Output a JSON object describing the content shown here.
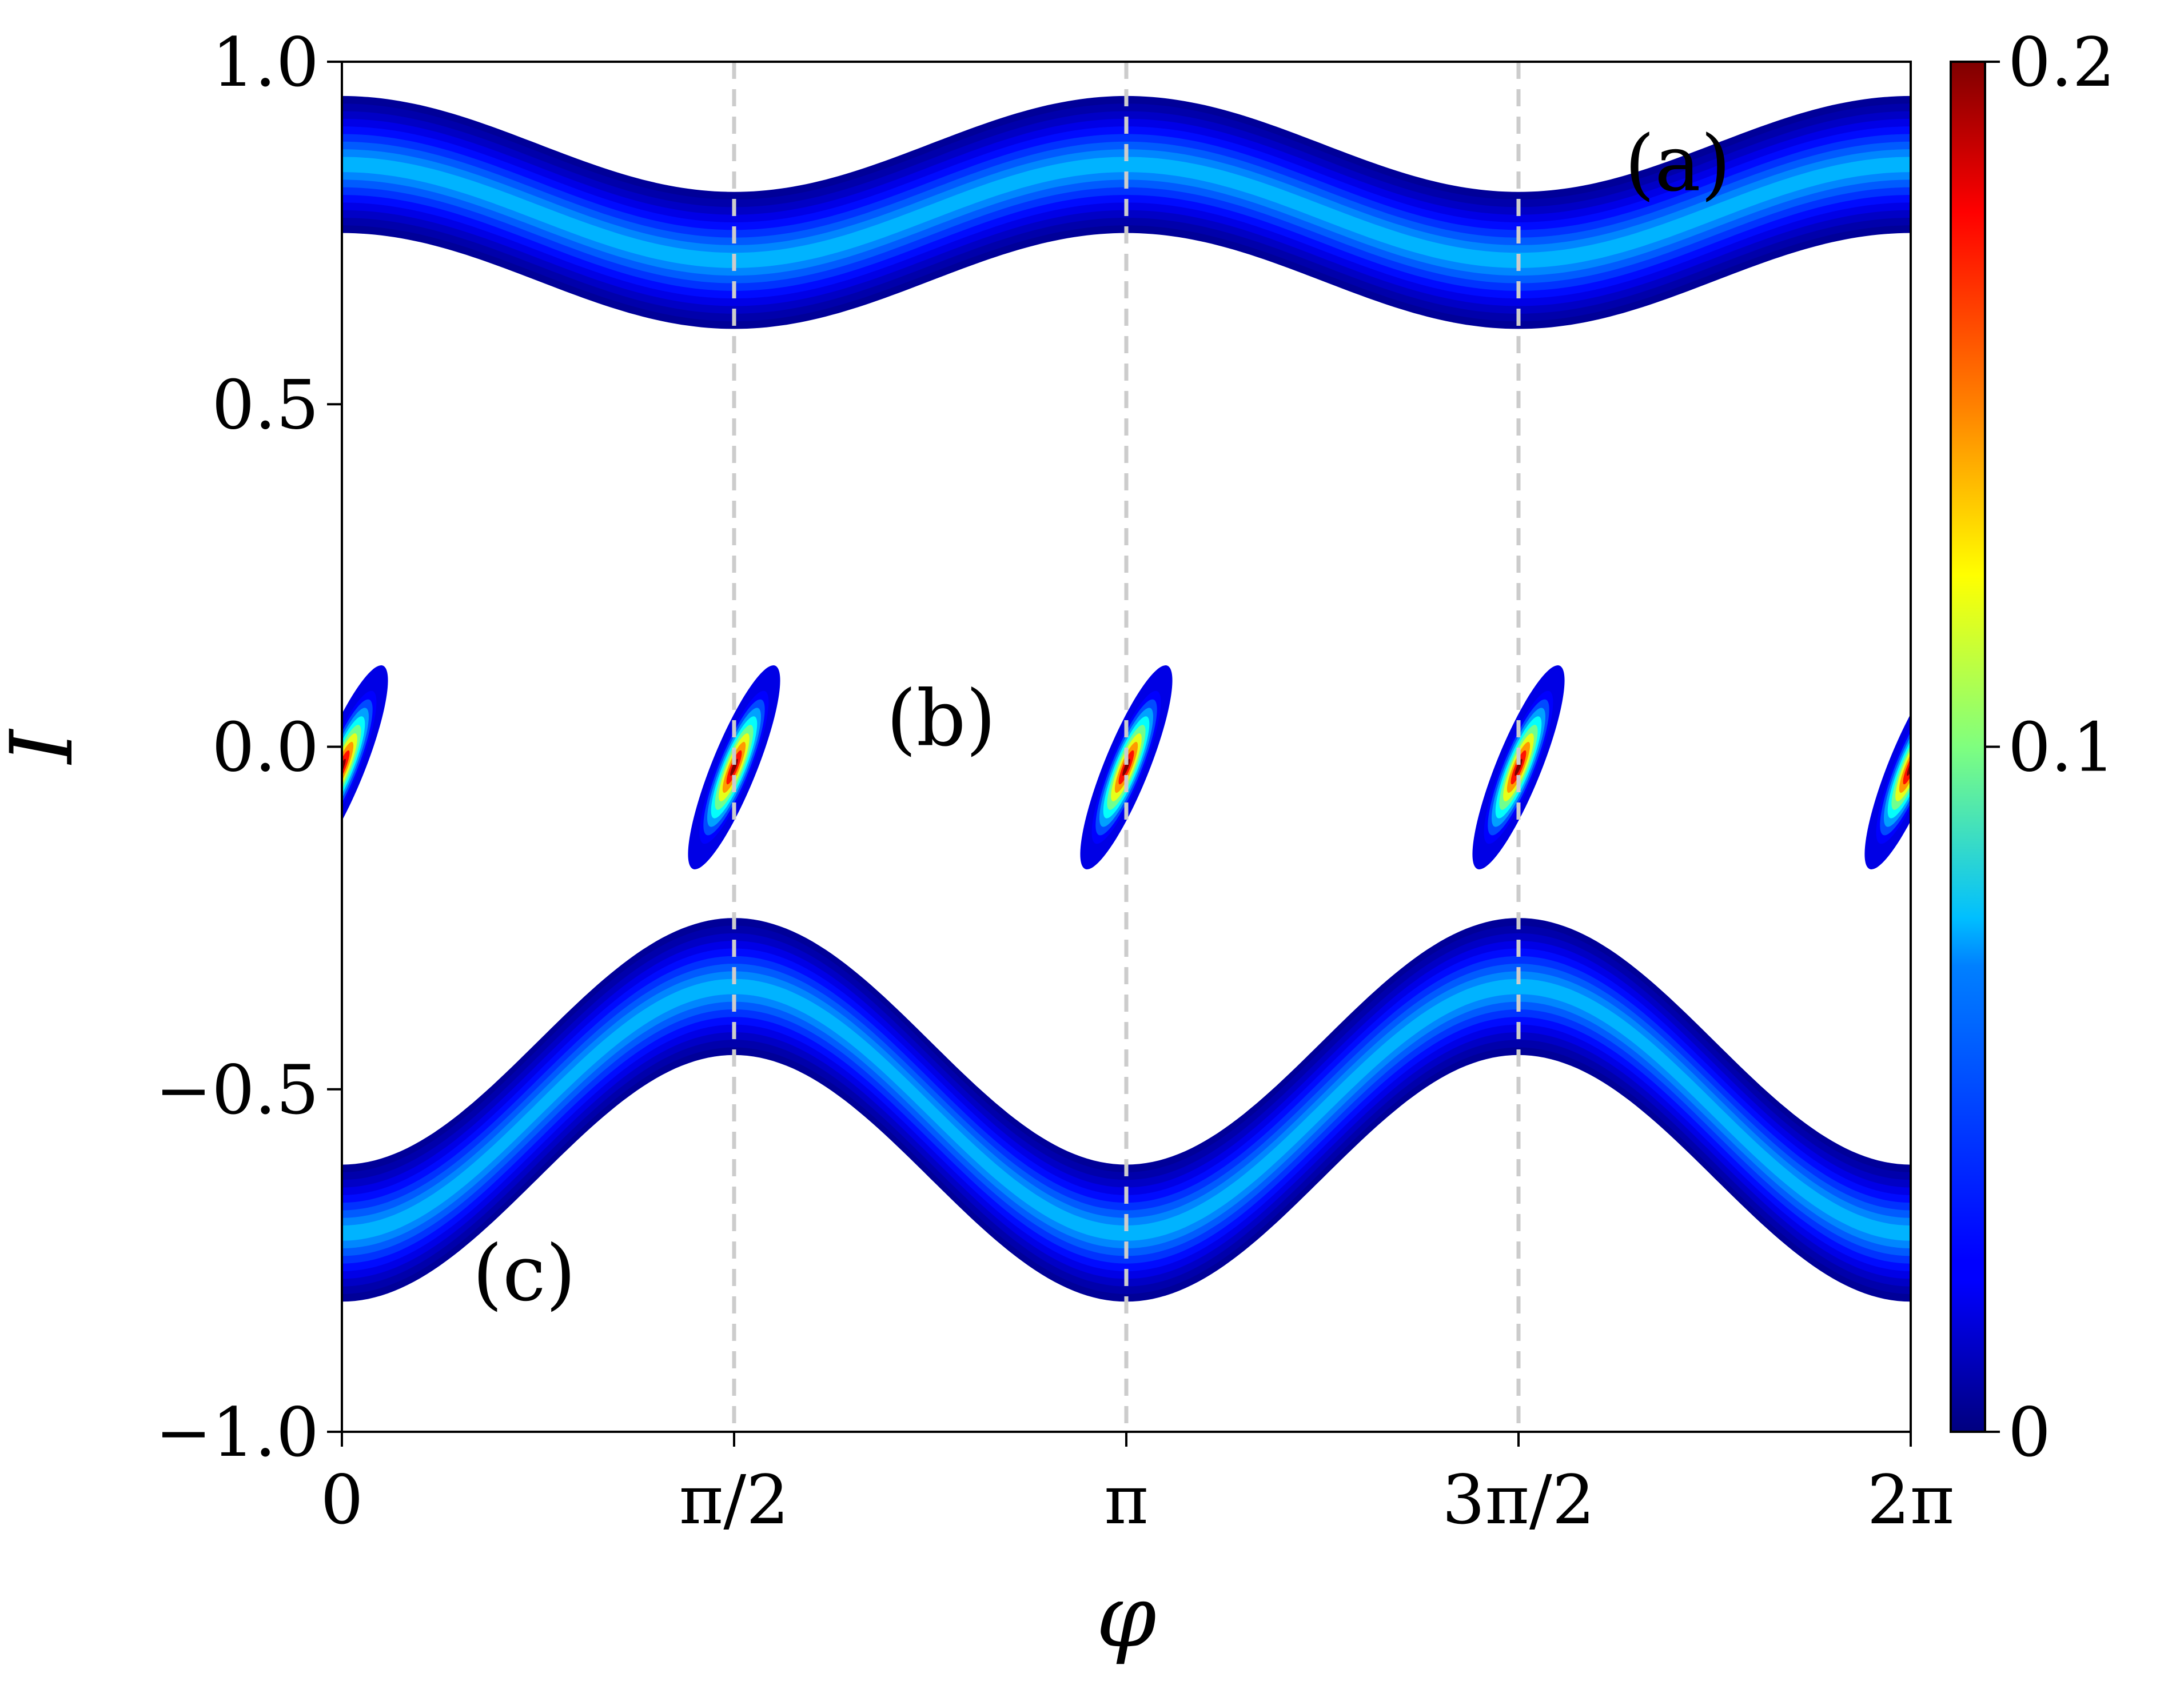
{
  "chart_data": {
    "type": "heatmap",
    "xlabel": "φ",
    "ylabel": "I",
    "xlim": [
      0,
      6.283185307179586
    ],
    "ylim": [
      -1.0,
      1.0
    ],
    "xticks": [
      {
        "value": 0,
        "label": "0"
      },
      {
        "value": 1.5707963267948966,
        "label": "π/2"
      },
      {
        "value": 3.141592653589793,
        "label": "π"
      },
      {
        "value": 4.71238898038469,
        "label": "3π/2"
      },
      {
        "value": 6.283185307179586,
        "label": "2π"
      }
    ],
    "yticks": [
      {
        "value": -1.0,
        "label": "−1.0"
      },
      {
        "value": -0.5,
        "label": "−0.5"
      },
      {
        "value": 0.0,
        "label": "0.0"
      },
      {
        "value": 0.5,
        "label": "0.5"
      },
      {
        "value": 1.0,
        "label": "1.0"
      }
    ],
    "vlines": [
      1.5707963267948966,
      3.141592653589793,
      4.71238898038469
    ],
    "colorbar": {
      "colormap": "jet",
      "range": [
        0,
        0.2
      ],
      "ticks": [
        {
          "value": 0,
          "label": "0"
        },
        {
          "value": 0.1,
          "label": "0.1"
        },
        {
          "value": 0.2,
          "label": "0.2"
        }
      ]
    },
    "bands": [
      {
        "name": "(a)",
        "center_offset": 0.78,
        "amplitude": 0.07,
        "half_width": 0.1,
        "peak_value": 0.06
      },
      {
        "name": "(c)",
        "center_offset": -0.53,
        "amplitude": -0.18,
        "half_width": 0.1,
        "peak_value": 0.06
      }
    ],
    "islands": [
      {
        "name": "(b)",
        "center_phi": 0.0,
        "center_I": -0.03,
        "peak_value": 0.2
      },
      {
        "name": "(b)",
        "center_phi": 1.5707963267948966,
        "center_I": -0.03,
        "peak_value": 0.2
      },
      {
        "name": "(b)",
        "center_phi": 3.141592653589793,
        "center_I": -0.03,
        "peak_value": 0.2
      },
      {
        "name": "(b)",
        "center_phi": 4.71238898038469,
        "center_I": -0.03,
        "peak_value": 0.2
      },
      {
        "name": "(b)",
        "center_phi": 6.283185307179586,
        "center_I": -0.03,
        "peak_value": 0.2
      }
    ],
    "annotations": [
      {
        "text": "(a)",
        "x": 5.35,
        "y": 0.85
      },
      {
        "text": "(b)",
        "x": 2.4,
        "y": 0.04
      },
      {
        "text": "(c)",
        "x": 0.73,
        "y": -0.77
      }
    ]
  }
}
